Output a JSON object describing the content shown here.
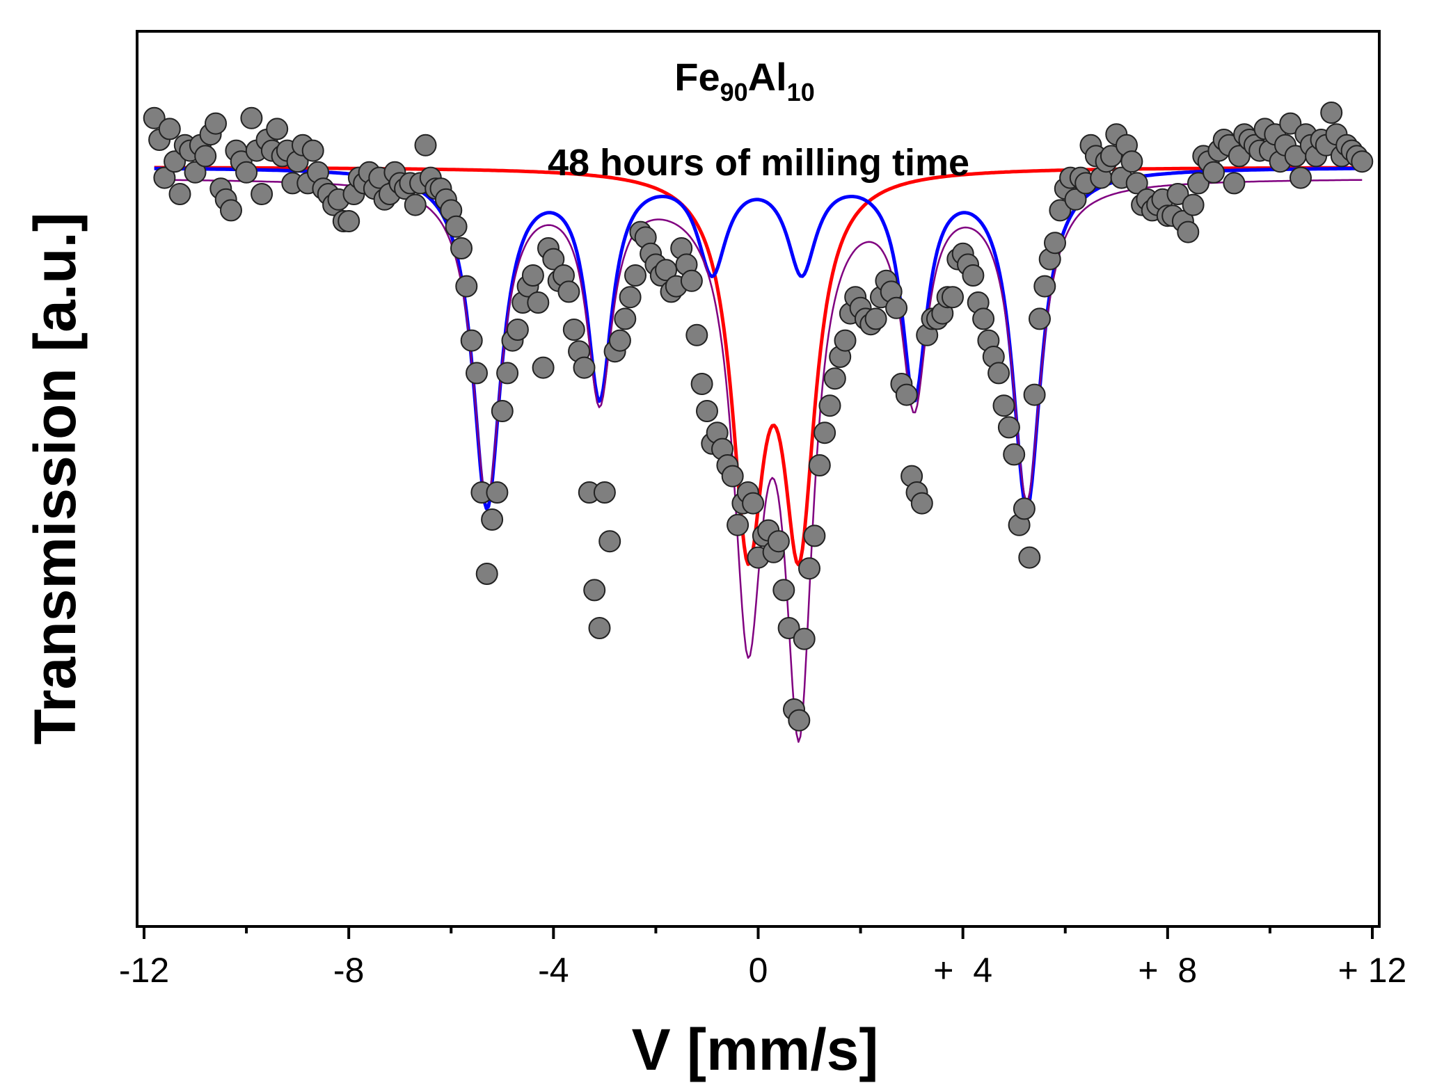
{
  "chart_data": {
    "type": "scatter",
    "title_formula": {
      "element1": "Fe",
      "sub1": "90",
      "element2": "Al",
      "sub2": "10"
    },
    "subtitle": "48 hours of milling time",
    "xlabel": "V [mm/s]",
    "ylabel": "Transmission [a.u.]",
    "xlim": [
      -12,
      12
    ],
    "ylim": [
      0.86,
      1.025
    ],
    "x_ticks": [
      {
        "value": -12,
        "label": "-12"
      },
      {
        "value": -8,
        "label": "-8"
      },
      {
        "value": -4,
        "label": "-4"
      },
      {
        "value": 0,
        "label": "0"
      },
      {
        "value": 4,
        "label": "+  4"
      },
      {
        "value": 8,
        "label": "+  8"
      },
      {
        "value": 12,
        "label": "+ 12"
      }
    ],
    "x_minor_ticks": [
      -10,
      -6,
      -2,
      2,
      6,
      10
    ],
    "grid": false,
    "colors": {
      "points_fill": "#7f7f7f",
      "points_edge": "#222222",
      "red": "#ff0000",
      "blue": "#0000ff",
      "purple": "#800080"
    },
    "series": [
      {
        "name": "experimental",
        "kind": "points",
        "points": [
          [
            -11.8,
            1.009
          ],
          [
            -11.7,
            1.005
          ],
          [
            -11.6,
            0.998
          ],
          [
            -11.5,
            1.007
          ],
          [
            -11.4,
            1.001
          ],
          [
            -11.3,
            0.995
          ],
          [
            -11.2,
            1.004
          ],
          [
            -11.1,
            1.003
          ],
          [
            -11.0,
            0.999
          ],
          [
            -10.9,
            1.004
          ],
          [
            -10.8,
            1.002
          ],
          [
            -10.7,
            1.006
          ],
          [
            -10.6,
            1.008
          ],
          [
            -10.5,
            0.996
          ],
          [
            -10.4,
            0.994
          ],
          [
            -10.3,
            0.992
          ],
          [
            -10.2,
            1.003
          ],
          [
            -10.1,
            1.001
          ],
          [
            -10.0,
            0.999
          ],
          [
            -9.9,
            1.009
          ],
          [
            -9.8,
            1.003
          ],
          [
            -9.7,
            0.995
          ],
          [
            -9.6,
            1.005
          ],
          [
            -9.5,
            1.003
          ],
          [
            -9.4,
            1.007
          ],
          [
            -9.3,
            1.002
          ],
          [
            -9.2,
            1.003
          ],
          [
            -9.1,
            0.997
          ],
          [
            -9.0,
            1.001
          ],
          [
            -8.9,
            1.004
          ],
          [
            -8.8,
            0.997
          ],
          [
            -8.7,
            1.003
          ],
          [
            -8.6,
            0.999
          ],
          [
            -8.5,
            0.996
          ],
          [
            -8.4,
            0.995
          ],
          [
            -8.3,
            0.993
          ],
          [
            -8.2,
            0.994
          ],
          [
            -8.1,
            0.99
          ],
          [
            -8.0,
            0.99
          ],
          [
            -7.9,
            0.995
          ],
          [
            -7.8,
            0.998
          ],
          [
            -7.7,
            0.997
          ],
          [
            -7.6,
            0.999
          ],
          [
            -7.5,
            0.996
          ],
          [
            -7.4,
            0.998
          ],
          [
            -7.3,
            0.994
          ],
          [
            -7.2,
            0.995
          ],
          [
            -7.1,
            0.999
          ],
          [
            -7.0,
            0.997
          ],
          [
            -6.9,
            0.996
          ],
          [
            -6.8,
            0.997
          ],
          [
            -6.7,
            0.993
          ],
          [
            -6.6,
            0.997
          ],
          [
            -6.5,
            1.004
          ],
          [
            -6.4,
            0.998
          ],
          [
            -6.3,
            0.996
          ],
          [
            -6.2,
            0.996
          ],
          [
            -6.1,
            0.994
          ],
          [
            -6.0,
            0.992
          ],
          [
            -5.9,
            0.989
          ],
          [
            -5.8,
            0.985
          ],
          [
            -5.7,
            0.978
          ],
          [
            -5.6,
            0.968
          ],
          [
            -5.5,
            0.962
          ],
          [
            -5.4,
            0.94
          ],
          [
            -5.3,
            0.925
          ],
          [
            -5.2,
            0.935
          ],
          [
            -5.1,
            0.94
          ],
          [
            -5.0,
            0.955
          ],
          [
            -4.9,
            0.962
          ],
          [
            -4.8,
            0.968
          ],
          [
            -4.7,
            0.97
          ],
          [
            -4.6,
            0.975
          ],
          [
            -4.5,
            0.978
          ],
          [
            -4.4,
            0.98
          ],
          [
            -4.3,
            0.975
          ],
          [
            -4.2,
            0.963
          ],
          [
            -4.1,
            0.985
          ],
          [
            -4.0,
            0.983
          ],
          [
            -3.9,
            0.979
          ],
          [
            -3.8,
            0.98
          ],
          [
            -3.7,
            0.977
          ],
          [
            -3.6,
            0.97
          ],
          [
            -3.5,
            0.966
          ],
          [
            -3.4,
            0.963
          ],
          [
            -3.3,
            0.94
          ],
          [
            -3.2,
            0.922
          ],
          [
            -3.1,
            0.915
          ],
          [
            -3.0,
            0.94
          ],
          [
            -2.9,
            0.931
          ],
          [
            -2.8,
            0.966
          ],
          [
            -2.7,
            0.968
          ],
          [
            -2.6,
            0.972
          ],
          [
            -2.5,
            0.976
          ],
          [
            -2.4,
            0.98
          ],
          [
            -2.3,
            0.988
          ],
          [
            -2.2,
            0.987
          ],
          [
            -2.1,
            0.984
          ],
          [
            -2.0,
            0.982
          ],
          [
            -1.9,
            0.98
          ],
          [
            -1.8,
            0.981
          ],
          [
            -1.7,
            0.977
          ],
          [
            -1.6,
            0.978
          ],
          [
            -1.5,
            0.985
          ],
          [
            -1.4,
            0.982
          ],
          [
            -1.3,
            0.979
          ],
          [
            -1.2,
            0.969
          ],
          [
            -1.1,
            0.96
          ],
          [
            -1.0,
            0.955
          ],
          [
            -0.9,
            0.949
          ],
          [
            -0.8,
            0.951
          ],
          [
            -0.7,
            0.948
          ],
          [
            -0.6,
            0.945
          ],
          [
            -0.5,
            0.943
          ],
          [
            -0.4,
            0.934
          ],
          [
            -0.3,
            0.938
          ],
          [
            -0.2,
            0.94
          ],
          [
            -0.1,
            0.938
          ],
          [
            0.0,
            0.928
          ],
          [
            0.1,
            0.932
          ],
          [
            0.2,
            0.933
          ],
          [
            0.3,
            0.929
          ],
          [
            0.4,
            0.931
          ],
          [
            0.5,
            0.922
          ],
          [
            0.6,
            0.915
          ],
          [
            0.7,
            0.9
          ],
          [
            0.8,
            0.898
          ],
          [
            0.9,
            0.913
          ],
          [
            1.0,
            0.926
          ],
          [
            1.1,
            0.932
          ],
          [
            1.2,
            0.945
          ],
          [
            1.3,
            0.951
          ],
          [
            1.4,
            0.956
          ],
          [
            1.5,
            0.961
          ],
          [
            1.6,
            0.965
          ],
          [
            1.7,
            0.968
          ],
          [
            1.8,
            0.973
          ],
          [
            1.9,
            0.976
          ],
          [
            2.0,
            0.974
          ],
          [
            2.1,
            0.972
          ],
          [
            2.2,
            0.971
          ],
          [
            2.3,
            0.972
          ],
          [
            2.4,
            0.976
          ],
          [
            2.5,
            0.979
          ],
          [
            2.6,
            0.977
          ],
          [
            2.7,
            0.974
          ],
          [
            2.8,
            0.96
          ],
          [
            2.9,
            0.958
          ],
          [
            3.0,
            0.943
          ],
          [
            3.1,
            0.94
          ],
          [
            3.2,
            0.938
          ],
          [
            3.3,
            0.969
          ],
          [
            3.4,
            0.972
          ],
          [
            3.5,
            0.972
          ],
          [
            3.6,
            0.973
          ],
          [
            3.7,
            0.976
          ],
          [
            3.8,
            0.976
          ],
          [
            3.9,
            0.983
          ],
          [
            4.0,
            0.984
          ],
          [
            4.1,
            0.982
          ],
          [
            4.2,
            0.98
          ],
          [
            4.3,
            0.975
          ],
          [
            4.4,
            0.972
          ],
          [
            4.5,
            0.968
          ],
          [
            4.6,
            0.965
          ],
          [
            4.7,
            0.962
          ],
          [
            4.8,
            0.956
          ],
          [
            4.9,
            0.952
          ],
          [
            5.0,
            0.947
          ],
          [
            5.1,
            0.934
          ],
          [
            5.2,
            0.937
          ],
          [
            5.3,
            0.928
          ],
          [
            5.4,
            0.958
          ],
          [
            5.5,
            0.972
          ],
          [
            5.6,
            0.978
          ],
          [
            5.7,
            0.983
          ],
          [
            5.8,
            0.986
          ],
          [
            5.9,
            0.992
          ],
          [
            6.0,
            0.996
          ],
          [
            6.1,
            0.998
          ],
          [
            6.2,
            0.994
          ],
          [
            6.3,
            0.998
          ],
          [
            6.4,
            0.997
          ],
          [
            6.5,
            1.004
          ],
          [
            6.6,
            1.002
          ],
          [
            6.7,
            0.998
          ],
          [
            6.8,
            1.001
          ],
          [
            6.9,
            1.002
          ],
          [
            7.0,
            1.006
          ],
          [
            7.1,
            0.998
          ],
          [
            7.2,
            1.004
          ],
          [
            7.3,
            1.001
          ],
          [
            7.4,
            0.997
          ],
          [
            7.5,
            0.993
          ],
          [
            7.6,
            0.994
          ],
          [
            7.7,
            0.992
          ],
          [
            7.8,
            0.993
          ],
          [
            7.9,
            0.994
          ],
          [
            8.0,
            0.991
          ],
          [
            8.1,
            0.991
          ],
          [
            8.2,
            0.995
          ],
          [
            8.3,
            0.99
          ],
          [
            8.4,
            0.988
          ],
          [
            8.5,
            0.993
          ],
          [
            8.6,
            0.997
          ],
          [
            8.7,
            1.002
          ],
          [
            8.8,
            1.001
          ],
          [
            8.9,
            0.999
          ],
          [
            9.0,
            1.003
          ],
          [
            9.1,
            1.005
          ],
          [
            9.2,
            1.004
          ],
          [
            9.3,
            0.997
          ],
          [
            9.4,
            1.002
          ],
          [
            9.5,
            1.006
          ],
          [
            9.6,
            1.005
          ],
          [
            9.7,
            1.004
          ],
          [
            9.8,
            1.003
          ],
          [
            9.9,
            1.007
          ],
          [
            10.0,
            1.003
          ],
          [
            10.1,
            1.006
          ],
          [
            10.2,
            1.001
          ],
          [
            10.3,
            1.004
          ],
          [
            10.4,
            1.008
          ],
          [
            10.5,
            1.002
          ],
          [
            10.6,
            0.998
          ],
          [
            10.7,
            1.006
          ],
          [
            10.8,
            1.004
          ],
          [
            10.9,
            1.002
          ],
          [
            11.0,
            1.005
          ],
          [
            11.1,
            1.004
          ],
          [
            11.2,
            1.01
          ],
          [
            11.3,
            1.006
          ],
          [
            11.4,
            1.002
          ],
          [
            11.5,
            1.004
          ],
          [
            11.6,
            1.003
          ],
          [
            11.7,
            1.002
          ],
          [
            11.8,
            1.001
          ]
        ]
      },
      {
        "name": "red doublet",
        "kind": "lorentz",
        "color": "#ff0000",
        "width": 5,
        "baseline": 1.0,
        "peaks": [
          {
            "center": -0.2,
            "depth": 0.065,
            "hwhm": 0.38
          },
          {
            "center": 0.8,
            "depth": 0.065,
            "hwhm": 0.38
          }
        ]
      },
      {
        "name": "blue sextet",
        "kind": "lorentz",
        "color": "#0000ff",
        "width": 5,
        "baseline": 1.0,
        "peaks": [
          {
            "center": -5.3,
            "depth": 0.062,
            "hwhm": 0.34
          },
          {
            "center": -3.1,
            "depth": 0.041,
            "hwhm": 0.3
          },
          {
            "center": -0.9,
            "depth": 0.018,
            "hwhm": 0.34
          },
          {
            "center": 0.85,
            "depth": 0.018,
            "hwhm": 0.34
          },
          {
            "center": 3.05,
            "depth": 0.041,
            "hwhm": 0.3
          },
          {
            "center": 5.25,
            "depth": 0.062,
            "hwhm": 0.34
          }
        ]
      },
      {
        "name": "total fit",
        "kind": "lorentz",
        "color": "#800080",
        "width": 2.5,
        "baseline": 0.998,
        "peaks": [
          {
            "center": -5.3,
            "depth": 0.058,
            "hwhm": 0.34
          },
          {
            "center": -3.1,
            "depth": 0.039,
            "hwhm": 0.3
          },
          {
            "center": -0.2,
            "depth": 0.078,
            "hwhm": 0.35
          },
          {
            "center": 0.8,
            "depth": 0.094,
            "hwhm": 0.33
          },
          {
            "center": 3.05,
            "depth": 0.039,
            "hwhm": 0.3
          },
          {
            "center": 5.25,
            "depth": 0.058,
            "hwhm": 0.34
          }
        ]
      }
    ]
  }
}
